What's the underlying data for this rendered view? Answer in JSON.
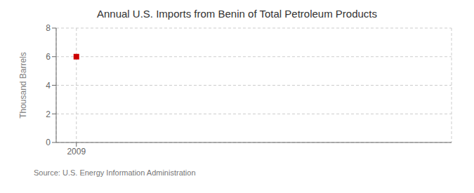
{
  "chart_data": {
    "type": "scatter",
    "title": "Annual U.S. Imports from Benin of Total Petroleum Products",
    "ylabel": "Thousand Barrels",
    "annotations": [
      "Source: U.S. Energy Information Administration"
    ],
    "x": [
      2009
    ],
    "values": [
      6
    ],
    "color": "#cc0000",
    "marker": "square",
    "xlim": [
      2008.3,
      2022
    ],
    "xticks": [
      2009
    ],
    "ylim": [
      0,
      8
    ],
    "yticks": [
      0,
      2,
      4,
      6,
      8
    ],
    "grid": true
  }
}
